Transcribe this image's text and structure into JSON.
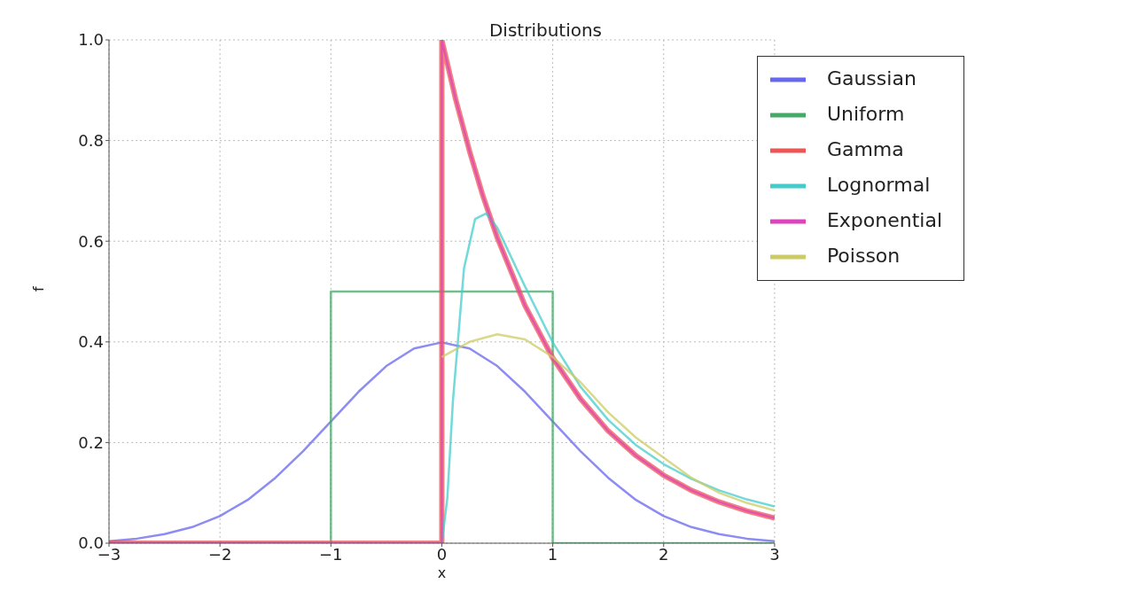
{
  "chart_data": {
    "type": "line",
    "title": "Distributions",
    "xlabel": "x",
    "ylabel": "f",
    "xlim": [
      -3,
      3
    ],
    "xticks": [
      -3,
      -2,
      -1,
      0,
      1,
      2,
      3
    ],
    "ylim": [
      0,
      1
    ],
    "yticks": [
      {
        "value": 0,
        "label": "0.0"
      },
      {
        "value": 0.2,
        "label": "0.2"
      },
      {
        "value": 0.4,
        "label": "0.4"
      },
      {
        "value": 0.6,
        "label": "0.6"
      },
      {
        "value": 0.8,
        "label": "0.8"
      },
      {
        "value": 1,
        "label": "1.0"
      }
    ],
    "grid": true,
    "legend": "top right",
    "series": [
      {
        "name": "Gaussian",
        "color": "#6666ee",
        "x": [
          -3,
          -2.75,
          -2.5,
          -2.25,
          -2,
          -1.75,
          -1.5,
          -1.25,
          -1,
          -0.75,
          -0.5,
          -0.25,
          0,
          0.25,
          0.5,
          0.75,
          1,
          1.25,
          1.5,
          1.75,
          2,
          2.25,
          2.5,
          2.75,
          3
        ],
        "values": [
          0.004,
          0.009,
          0.018,
          0.032,
          0.054,
          0.086,
          0.13,
          0.183,
          0.242,
          0.301,
          0.352,
          0.387,
          0.399,
          0.387,
          0.352,
          0.301,
          0.242,
          0.183,
          0.13,
          0.086,
          0.054,
          0.032,
          0.018,
          0.009,
          0.004
        ]
      },
      {
        "name": "Uniform",
        "color": "#44aa66",
        "x": [
          -3,
          -1,
          -1,
          1,
          1,
          3
        ],
        "values": [
          0,
          0,
          0.5,
          0.5,
          0,
          0
        ]
      },
      {
        "name": "Gamma",
        "color": "#ee5555",
        "x": [
          -3,
          0,
          0,
          0.125,
          0.25,
          0.375,
          0.5,
          0.75,
          1,
          1.25,
          1.5,
          1.75,
          2,
          2.25,
          2.5,
          2.75,
          3
        ],
        "values": [
          0,
          0,
          1,
          0.882,
          0.779,
          0.687,
          0.607,
          0.472,
          0.368,
          0.287,
          0.223,
          0.174,
          0.135,
          0.105,
          0.082,
          0.064,
          0.05
        ]
      },
      {
        "name": "Lognormal",
        "color": "#44cccc",
        "x": [
          0,
          0.05,
          0.1,
          0.2,
          0.3,
          0.4,
          0.5,
          0.75,
          1,
          1.25,
          1.5,
          1.75,
          2,
          2.25,
          2.5,
          2.75,
          3
        ],
        "values": [
          0,
          0.09,
          0.282,
          0.546,
          0.644,
          0.655,
          0.627,
          0.51,
          0.399,
          0.311,
          0.245,
          0.195,
          0.157,
          0.128,
          0.105,
          0.087,
          0.073
        ]
      },
      {
        "name": "Exponential",
        "color": "#dd44bb",
        "x": [
          -3,
          0,
          0,
          0.125,
          0.25,
          0.375,
          0.5,
          0.75,
          1,
          1.25,
          1.5,
          1.75,
          2,
          2.25,
          2.5,
          2.75,
          3
        ],
        "values": [
          0,
          0,
          1,
          0.882,
          0.779,
          0.687,
          0.607,
          0.472,
          0.368,
          0.287,
          0.223,
          0.174,
          0.135,
          0.105,
          0.082,
          0.064,
          0.05
        ]
      },
      {
        "name": "Poisson",
        "color": "#cccc66",
        "x": [
          0,
          0.25,
          0.5,
          0.75,
          1,
          1.25,
          1.5,
          1.75,
          2,
          2.25,
          2.5,
          2.75,
          3
        ],
        "values": [
          0.37,
          0.4,
          0.415,
          0.405,
          0.37,
          0.32,
          0.26,
          0.21,
          0.17,
          0.13,
          0.1,
          0.08,
          0.065
        ]
      }
    ]
  }
}
